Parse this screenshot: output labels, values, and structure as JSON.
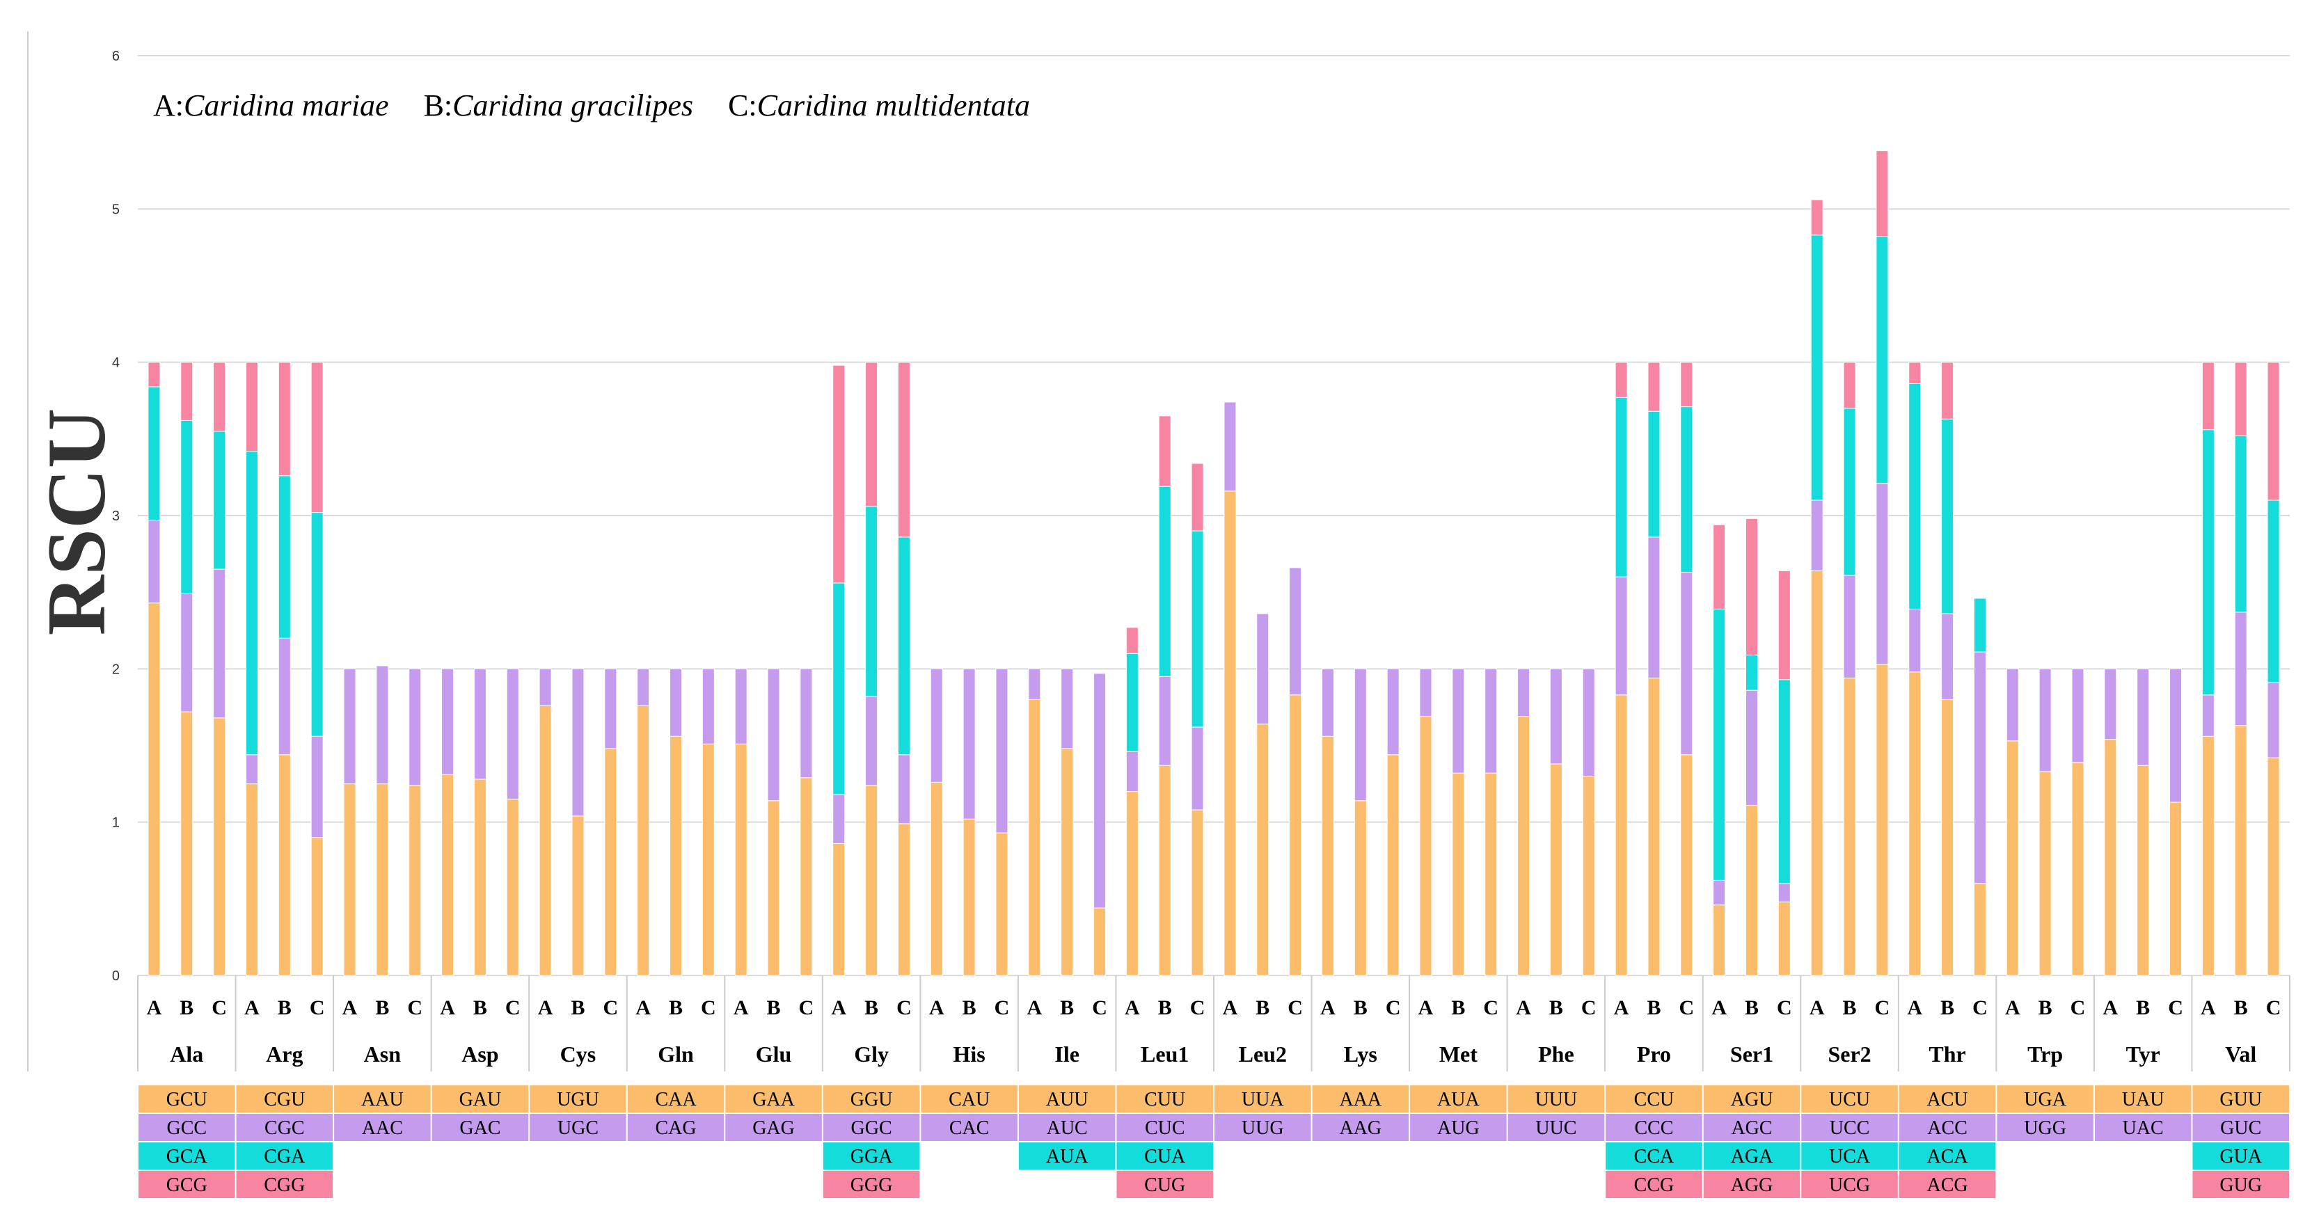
{
  "colors": {
    "seg1": "#FBBD6C",
    "seg2": "#C59BEE",
    "seg3": "#13DCDB",
    "seg4": "#F784A0"
  },
  "chart_data": {
    "type": "bar",
    "stacked": true,
    "ylabel": "RSCU",
    "ylim": [
      0,
      6
    ],
    "yticks": [
      0,
      1,
      2,
      3,
      4,
      5,
      6
    ],
    "grid": true,
    "legend_prefix": [
      "A:",
      "B:",
      "C:"
    ],
    "legend_species": [
      "Caridina mariae",
      "Caridina gracilipes",
      "Caridina multidentata"
    ],
    "species_keys": [
      "A",
      "B",
      "C"
    ],
    "categories": [
      "Ala",
      "Arg",
      "Asn",
      "Asp",
      "Cys",
      "Gln",
      "Glu",
      "Gly",
      "His",
      "Ile",
      "Leu1",
      "Leu2",
      "Lys",
      "Met",
      "Phe",
      "Pro",
      "Ser1",
      "Ser2",
      "Thr",
      "Trp",
      "Tyr",
      "Val"
    ],
    "codons": [
      [
        "GCU",
        "GCC",
        "GCA",
        "GCG"
      ],
      [
        "CGU",
        "CGC",
        "CGA",
        "CGG"
      ],
      [
        "AAU",
        "AAC"
      ],
      [
        "GAU",
        "GAC"
      ],
      [
        "UGU",
        "UGC"
      ],
      [
        "CAA",
        "CAG"
      ],
      [
        "GAA",
        "GAG"
      ],
      [
        "GGU",
        "GGC",
        "GGA",
        "GGG"
      ],
      [
        "CAU",
        "CAC"
      ],
      [
        "AUU",
        "AUC",
        "AUA"
      ],
      [
        "CUU",
        "CUC",
        "CUA",
        "CUG"
      ],
      [
        "UUA",
        "UUG"
      ],
      [
        "AAA",
        "AAG"
      ],
      [
        "AUA",
        "AUG"
      ],
      [
        "UUU",
        "UUC"
      ],
      [
        "CCU",
        "CCC",
        "CCA",
        "CCG"
      ],
      [
        "AGU",
        "AGC",
        "AGA",
        "AGG"
      ],
      [
        "UCU",
        "UCC",
        "UCA",
        "UCG"
      ],
      [
        "ACU",
        "ACC",
        "ACA",
        "ACG"
      ],
      [
        "UGA",
        "UGG"
      ],
      [
        "UAU",
        "UAC"
      ],
      [
        "GUU",
        "GUC",
        "GUA",
        "GUG"
      ]
    ],
    "values": [
      [
        [
          2.43,
          0.54,
          0.87,
          0.16
        ],
        [
          1.72,
          0.77,
          1.13,
          0.38
        ],
        [
          1.68,
          0.97,
          0.9,
          0.45
        ]
      ],
      [
        [
          1.25,
          0.19,
          1.98,
          0.58
        ],
        [
          1.44,
          0.76,
          1.06,
          0.74
        ],
        [
          0.9,
          0.66,
          1.46,
          0.98
        ]
      ],
      [
        [
          1.25,
          0.75
        ],
        [
          1.25,
          0.77
        ],
        [
          1.24,
          0.76
        ]
      ],
      [
        [
          1.31,
          0.69
        ],
        [
          1.28,
          0.72
        ],
        [
          1.15,
          0.85
        ]
      ],
      [
        [
          1.76,
          0.24
        ],
        [
          1.04,
          0.96
        ],
        [
          1.48,
          0.52
        ]
      ],
      [
        [
          1.76,
          0.24
        ],
        [
          1.56,
          0.44
        ],
        [
          1.51,
          0.49
        ]
      ],
      [
        [
          1.51,
          0.49
        ],
        [
          1.14,
          0.86
        ],
        [
          1.29,
          0.71
        ]
      ],
      [
        [
          0.86,
          0.32,
          1.38,
          1.42
        ],
        [
          1.24,
          0.58,
          1.24,
          0.94
        ],
        [
          0.99,
          0.45,
          1.42,
          1.14
        ]
      ],
      [
        [
          1.26,
          0.74
        ],
        [
          1.02,
          0.98
        ],
        [
          0.93,
          1.07
        ]
      ],
      [
        [
          1.8,
          0.2
        ],
        [
          1.48,
          0.52
        ],
        [
          0.44,
          1.53
        ]
      ],
      [
        [
          1.2,
          0.26,
          0.64,
          0.17
        ],
        [
          1.37,
          0.58,
          1.24,
          0.46
        ],
        [
          1.08,
          0.54,
          1.28,
          0.44
        ]
      ],
      [
        [
          3.16,
          0.58
        ],
        [
          1.64,
          0.72
        ],
        [
          1.83,
          0.83
        ]
      ],
      [
        [
          1.56,
          0.44
        ],
        [
          1.14,
          0.86
        ],
        [
          1.44,
          0.56
        ]
      ],
      [
        [
          1.69,
          0.31
        ],
        [
          1.32,
          0.68
        ],
        [
          1.32,
          0.68
        ]
      ],
      [
        [
          1.69,
          0.31
        ],
        [
          1.38,
          0.62
        ],
        [
          1.3,
          0.7
        ]
      ],
      [
        [
          1.83,
          0.77,
          1.17,
          0.23
        ],
        [
          1.94,
          0.92,
          0.82,
          0.32
        ],
        [
          1.44,
          1.19,
          1.08,
          0.29
        ]
      ],
      [
        [
          0.46,
          0.16,
          1.77,
          0.55
        ],
        [
          1.11,
          0.75,
          0.23,
          0.89
        ],
        [
          0.48,
          0.12,
          1.33,
          0.71
        ]
      ],
      [
        [
          2.64,
          0.46,
          1.73,
          0.23
        ],
        [
          1.94,
          0.67,
          1.09,
          0.3
        ],
        [
          2.03,
          1.18,
          1.61,
          0.56
        ]
      ],
      [
        [
          1.98,
          0.41,
          1.47,
          0.14
        ],
        [
          1.8,
          0.56,
          1.27,
          0.37
        ],
        [
          0.6,
          1.51,
          0.35,
          0.0
        ]
      ],
      [
        [
          1.53,
          0.47
        ],
        [
          1.33,
          0.67
        ],
        [
          1.39,
          0.61
        ]
      ],
      [
        [
          1.54,
          0.46
        ],
        [
          1.37,
          0.63
        ],
        [
          1.13,
          0.87
        ]
      ],
      [
        [
          1.56,
          0.27,
          1.73,
          0.44
        ],
        [
          1.63,
          0.74,
          1.15,
          0.48
        ],
        [
          1.42,
          0.49,
          1.19,
          0.9
        ]
      ]
    ]
  }
}
